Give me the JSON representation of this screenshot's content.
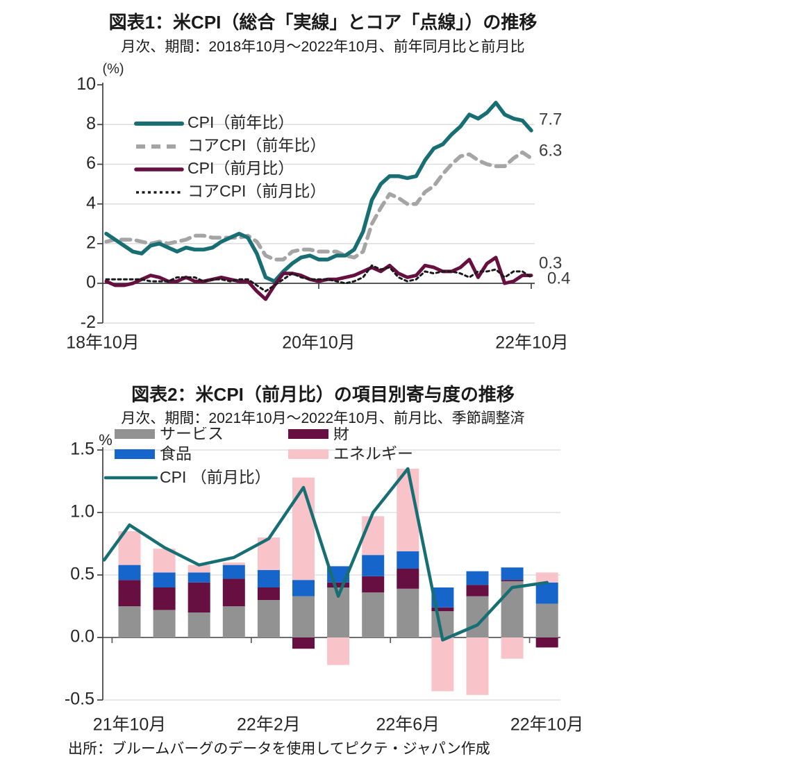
{
  "source_note": "出所：ブルームバーグのデータを使用してピクテ・ジャパン作成",
  "chart_data": [
    {
      "type": "line",
      "title": "図表1：米CPI（総合「実線」とコア「点線」）の推移",
      "subtitle": "月次、期間：2018年10月～2022年10月、前年同月比と前月比",
      "unit_label": "(%)",
      "ylim": [
        -2,
        10
      ],
      "y_ticks": [
        "10",
        "8",
        "6",
        "4",
        "2",
        "0",
        "-2"
      ],
      "y_tick_values": [
        10,
        8,
        6,
        4,
        2,
        0,
        -2
      ],
      "x_tick_labels": [
        "18年10月",
        "20年10月",
        "22年10月"
      ],
      "x_tick_month_index": [
        0,
        24,
        48
      ],
      "grid": true,
      "legend_position": "upper-left-inside",
      "colors": {
        "cpi_yoy": "#176F74",
        "core_yoy": "#A5A5A5",
        "cpi_mom": "#670F40",
        "core_mom": "#1A1A1A"
      },
      "series": [
        {
          "name": "CPI（前年比）",
          "style": "solid",
          "width": 5.5,
          "color": "#176F74",
          "values": [
            2.5,
            2.2,
            1.9,
            1.6,
            1.5,
            1.9,
            2.0,
            1.8,
            1.6,
            1.8,
            1.7,
            1.7,
            1.8,
            2.1,
            2.3,
            2.5,
            2.3,
            1.5,
            0.3,
            0.1,
            0.6,
            1.0,
            1.3,
            1.4,
            1.2,
            1.2,
            1.4,
            1.4,
            1.7,
            2.6,
            4.2,
            5.0,
            5.4,
            5.4,
            5.3,
            5.4,
            6.2,
            6.8,
            7.0,
            7.5,
            7.9,
            8.5,
            8.3,
            8.6,
            9.1,
            8.5,
            8.3,
            8.2,
            7.7
          ]
        },
        {
          "name": "コアCPI（前年比）",
          "style": "dashed",
          "width": 5.5,
          "color": "#A5A5A5",
          "values": [
            2.1,
            2.2,
            2.2,
            2.2,
            2.1,
            2.0,
            2.1,
            2.0,
            2.1,
            2.2,
            2.4,
            2.4,
            2.3,
            2.3,
            2.3,
            2.3,
            2.4,
            2.1,
            1.4,
            1.2,
            1.2,
            1.6,
            1.7,
            1.7,
            1.6,
            1.6,
            1.6,
            1.4,
            1.3,
            1.6,
            3.0,
            3.8,
            4.5,
            4.3,
            4.0,
            4.0,
            4.6,
            4.9,
            5.5,
            6.0,
            6.4,
            6.5,
            6.2,
            6.0,
            5.9,
            5.9,
            6.3,
            6.6,
            6.3
          ]
        },
        {
          "name": "CPI（前月比）",
          "style": "solid",
          "width": 5,
          "color": "#670F40",
          "values": [
            0.1,
            -0.1,
            -0.1,
            0.0,
            0.2,
            0.4,
            0.3,
            0.1,
            0.1,
            0.3,
            0.1,
            0.1,
            0.2,
            0.3,
            0.2,
            0.1,
            0.1,
            -0.4,
            -0.8,
            -0.1,
            0.5,
            0.5,
            0.4,
            0.2,
            0.1,
            0.2,
            0.2,
            0.3,
            0.4,
            0.6,
            0.8,
            0.6,
            0.9,
            0.5,
            0.3,
            0.4,
            0.9,
            0.8,
            0.6,
            0.6,
            0.8,
            1.2,
            0.3,
            1.0,
            1.3,
            0.0,
            0.1,
            0.4,
            0.4
          ]
        },
        {
          "name": "コアCPI（前月比）",
          "style": "dotted",
          "width": 3,
          "color": "#1A1A1A",
          "values": [
            0.2,
            0.2,
            0.2,
            0.2,
            0.2,
            0.1,
            0.1,
            0.1,
            0.3,
            0.3,
            0.3,
            0.1,
            0.2,
            0.2,
            0.1,
            0.2,
            0.2,
            -0.1,
            -0.4,
            -0.1,
            0.2,
            0.5,
            0.3,
            0.2,
            0.2,
            0.2,
            0.1,
            0.0,
            0.1,
            0.3,
            0.9,
            0.7,
            0.8,
            0.3,
            0.1,
            0.2,
            0.6,
            0.5,
            0.6,
            0.6,
            0.5,
            0.3,
            0.6,
            0.6,
            0.7,
            0.3,
            0.6,
            0.6,
            0.3
          ]
        }
      ],
      "end_labels": [
        "7.7",
        "6.3",
        "0.3",
        "0.4"
      ]
    },
    {
      "type": "stacked-bar-line",
      "title": "図表2：米CPI（前月比）の項目別寄与度の推移",
      "subtitle": "月次、期間：2021年10月～2022年10月、前月比、季節調整済",
      "unit_label": "%",
      "ylim": [
        -0.5,
        1.5
      ],
      "y_ticks": [
        "1.5",
        "1.0",
        "0.5",
        "0.0",
        "-0.5"
      ],
      "y_tick_values": [
        1.5,
        1.0,
        0.5,
        0.0,
        -0.5
      ],
      "categories": [
        "21年10月",
        "21年11月",
        "21年12月",
        "22年1月",
        "22年2月",
        "22年3月",
        "22年4月",
        "22年5月",
        "22年6月",
        "22年7月",
        "22年8月",
        "22年9月",
        "22年10月"
      ],
      "x_tick_labels": [
        "21年10月",
        "22年2月",
        "22年6月",
        "22年10月"
      ],
      "x_tick_cat_index": [
        0,
        4,
        8,
        12
      ],
      "grid": true,
      "bar_series": [
        {
          "name": "サービス",
          "color": "#929292",
          "values": [
            0.25,
            0.22,
            0.2,
            0.25,
            0.3,
            0.33,
            0.4,
            0.36,
            0.39,
            0.21,
            0.33,
            0.45,
            0.27
          ]
        },
        {
          "name": "財",
          "color": "#670F40",
          "values": [
            0.21,
            0.18,
            0.24,
            0.22,
            0.1,
            -0.09,
            0.04,
            0.13,
            0.16,
            0.03,
            0.09,
            0.01,
            -0.08
          ]
        },
        {
          "name": "食品",
          "color": "#1565CB",
          "values": [
            0.12,
            0.12,
            0.08,
            0.11,
            0.14,
            0.13,
            0.13,
            0.17,
            0.14,
            0.16,
            0.11,
            0.1,
            0.17
          ]
        },
        {
          "name": "エネルギー",
          "color": "#F8C4C9",
          "values": [
            0.27,
            0.19,
            0.06,
            0.02,
            0.26,
            0.82,
            -0.22,
            0.31,
            0.66,
            -0.43,
            -0.46,
            -0.17,
            0.08
          ]
        }
      ],
      "line_series": {
        "name": "CPI （前月比）",
        "color": "#176F74",
        "edge_start": 0.62,
        "values": [
          0.9,
          0.72,
          0.58,
          0.64,
          0.79,
          1.2,
          0.33,
          1.0,
          1.35,
          -0.02,
          0.1,
          0.4,
          0.44
        ]
      }
    }
  ]
}
